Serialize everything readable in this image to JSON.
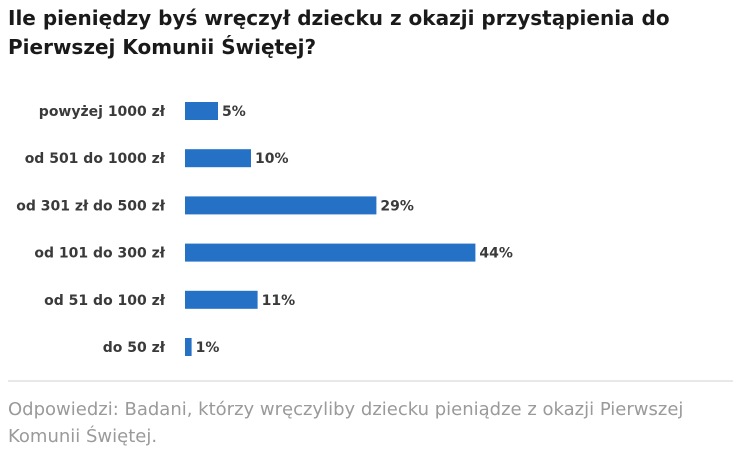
{
  "chart_data": {
    "type": "bar",
    "orientation": "horizontal",
    "title": "Ile pieniędzy byś wręczył dziecku z okazji przystąpienia do Pierwszej Komunii Świętej?",
    "categories": [
      "powyżej 1000 zł",
      "od 501 do 1000 zł",
      "od 301 zł do 500 zł",
      "od 101 do 300 zł",
      "od 51 do 100 zł",
      "do 50 zł"
    ],
    "values": [
      5,
      10,
      29,
      44,
      11,
      1
    ],
    "value_labels": [
      "5%",
      "10%",
      "29%",
      "44%",
      "11%",
      "1%"
    ],
    "color": "#2471c6",
    "footnote": "Odpowiedzi: Badani, którzy wręczyliby dziecku pieniądze z okazji Pierwszej Komunii Świętej."
  }
}
